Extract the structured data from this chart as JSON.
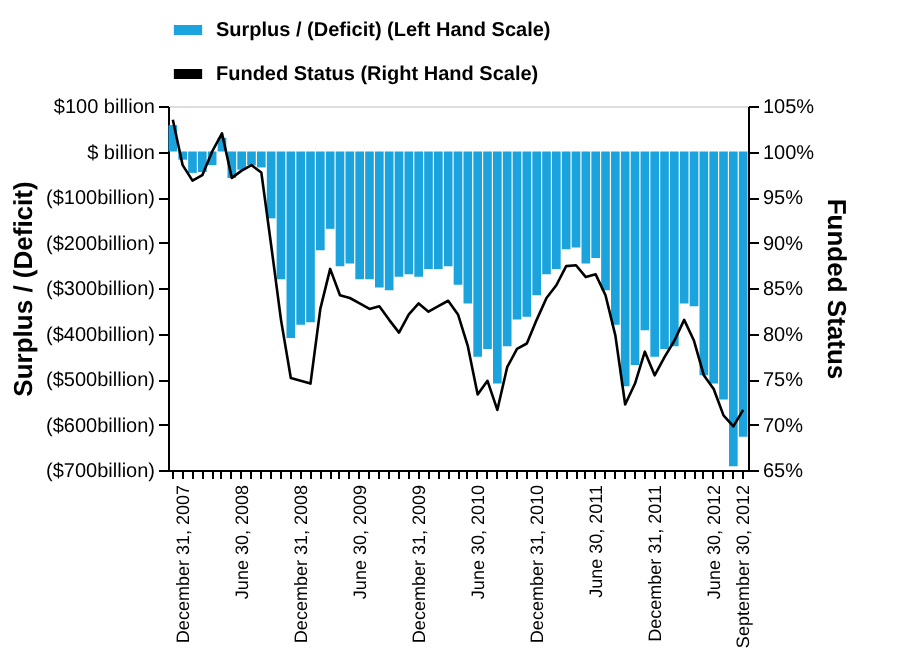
{
  "chart_data": {
    "type": "bar",
    "ylabel": "Surplus / (Deficit)",
    "y2label": "Funded Status",
    "legend": "top",
    "categories": [
      null,
      "December 31, 2007",
      null,
      null,
      null,
      null,
      null,
      "June 30, 2008",
      null,
      null,
      null,
      null,
      null,
      "December 31, 2008",
      null,
      null,
      null,
      null,
      null,
      "June 30, 2009",
      null,
      null,
      null,
      null,
      null,
      "December 31, 2009",
      null,
      null,
      null,
      null,
      null,
      "June 30, 2010",
      null,
      null,
      null,
      null,
      null,
      "December 31, 2010",
      null,
      null,
      null,
      null,
      null,
      "June 30, 2011",
      null,
      null,
      null,
      null,
      null,
      "December 31, 2011",
      null,
      null,
      null,
      null,
      null,
      "June 30, 2012",
      null,
      null,
      "September 30, 2012"
    ],
    "series": [
      {
        "name": "Surplus / (Deficit) (Left Hand Scale)",
        "color": "#1aa3dc",
        "values": [
          58,
          -18,
          -47,
          -45,
          -30,
          30,
          -58,
          -40,
          -30,
          -35,
          -147,
          -281,
          -410,
          -381,
          -375,
          -217,
          -170,
          -252,
          -246,
          -281,
          -281,
          -299,
          -305,
          -275,
          -270,
          -275,
          -258,
          -258,
          -252,
          -293,
          -334,
          -451,
          -434,
          -510,
          -428,
          -369,
          -363,
          -316,
          -270,
          -258,
          -215,
          -211,
          -246,
          -234,
          -305,
          -381,
          -516,
          -469,
          -393,
          -451,
          -434,
          -428,
          -334,
          -340,
          -492,
          -510,
          -545,
          -692,
          -627
        ]
      },
      {
        "name": "Funded Status (Right Hand Scale)",
        "type": "line",
        "axis": "y2",
        "color": "#000000",
        "values": [
          103.5,
          98.5,
          96.8,
          97.4,
          100,
          102,
          97.1,
          97.9,
          98.5,
          97.7,
          89.7,
          81.5,
          75.1,
          74.8,
          74.5,
          82.7,
          87.1,
          84.2,
          83.9,
          83.3,
          82.7,
          83.0,
          81.5,
          80.1,
          82.1,
          83.3,
          82.4,
          83.0,
          83.6,
          82.1,
          78.6,
          73.3,
          74.8,
          71.6,
          76.3,
          78.3,
          78.9,
          81.5,
          83.9,
          85.3,
          87.4,
          87.5,
          86.2,
          86.5,
          84.2,
          79.8,
          72.2,
          74.5,
          78.0,
          75.4,
          77.4,
          79.2,
          81.5,
          79.2,
          75.4,
          73.9,
          71.0,
          69.8,
          71.6
        ]
      }
    ],
    "ylim": [
      -700,
      100
    ],
    "yticks": [
      {
        "value": 100,
        "label": "$100 billion"
      },
      {
        "value": 0,
        "label": "$ billion"
      },
      {
        "value": -100,
        "label": "($100billion)"
      },
      {
        "value": -200,
        "label": "($200billion)"
      },
      {
        "value": -300,
        "label": "($300billion)"
      },
      {
        "value": -400,
        "label": "($400billion)"
      },
      {
        "value": -500,
        "label": "($500billion)"
      },
      {
        "value": -600,
        "label": "($600billion)"
      },
      {
        "value": -700,
        "label": "($700billion)"
      }
    ],
    "y2lim": [
      65,
      105
    ],
    "y2ticks": [
      {
        "value": 105,
        "label": "105%"
      },
      {
        "value": 100,
        "label": "100%"
      },
      {
        "value": 95,
        "label": "95%"
      },
      {
        "value": 90,
        "label": "90%"
      },
      {
        "value": 85,
        "label": "85%"
      },
      {
        "value": 80,
        "label": "80%"
      },
      {
        "value": 75,
        "label": "75%"
      },
      {
        "value": 70,
        "label": "70%"
      },
      {
        "value": 65,
        "label": "65%"
      }
    ]
  }
}
